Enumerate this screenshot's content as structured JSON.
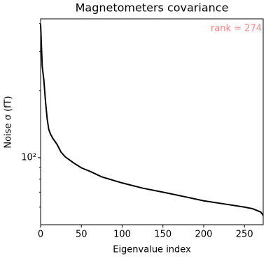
{
  "chart_data": {
    "type": "line",
    "title": "Magnetometers covariance",
    "xlabel": "Eigenvalue index",
    "ylabel": "Noise σ (fT)",
    "x": [
      0,
      2,
      4,
      6,
      8,
      10,
      12,
      15,
      20,
      25,
      30,
      40,
      50,
      60,
      75,
      100,
      125,
      150,
      175,
      200,
      225,
      250,
      260,
      265,
      270,
      273
    ],
    "values": [
      397,
      257,
      223,
      179,
      150,
      134,
      128,
      122,
      115,
      106,
      101,
      95,
      90,
      87,
      82,
      77,
      73,
      70,
      67,
      64,
      62,
      60,
      59,
      58,
      57,
      55
    ],
    "color": "#000000",
    "xlim": [
      0,
      273
    ],
    "xticks": [
      0,
      50,
      100,
      150,
      200,
      250
    ],
    "ylim": [
      50,
      420
    ],
    "yscale": "log",
    "yticks": [
      {
        "value": 100,
        "label": "10²"
      }
    ],
    "yminorticks": [
      60,
      70,
      80,
      90,
      200,
      300,
      400
    ],
    "annotation": "rank ≈ 274",
    "rank_line_x": 273,
    "annotation_color": "#ff0000"
  }
}
